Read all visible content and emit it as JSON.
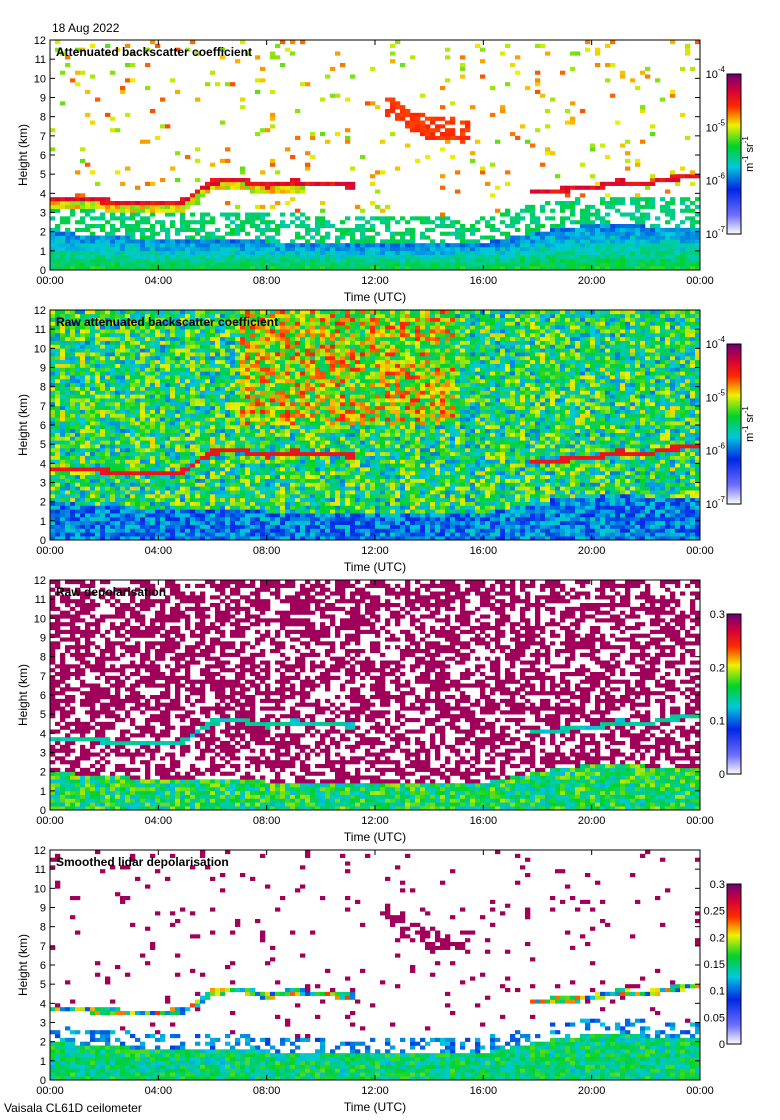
{
  "header": {
    "date": "18 Aug 2022"
  },
  "footer": {
    "instrument": "Vaisala CL61D ceilometer"
  },
  "chart_data": [
    {
      "type": "heatmap",
      "title": "Attenuated backscatter coefficient",
      "xlabel": "Time (UTC)",
      "ylabel": "Height (km)",
      "xlim": [
        "00:00",
        "24:00"
      ],
      "ylim": [
        0,
        12
      ],
      "x_ticks": [
        "00:00",
        "04:00",
        "08:00",
        "12:00",
        "16:00",
        "20:00",
        "00:00"
      ],
      "y_ticks": [
        "0",
        "1",
        "2",
        "3",
        "4",
        "5",
        "6",
        "7",
        "8",
        "9",
        "10",
        "11",
        "12"
      ],
      "colorbar": {
        "scale": "log",
        "range": [
          1e-07,
          0.0001
        ],
        "ticks": [
          "10",
          "10",
          "10",
          "10"
        ],
        "tick_exponents": [
          "-7",
          "-6",
          "-5",
          "-4"
        ],
        "unit": "m",
        "unit_exp1": "-1",
        "unit_mid": " sr",
        "unit_exp2": "-1",
        "colormap": "rainbow"
      },
      "features": {
        "cloud_base_low_km": [
          [
            0,
            3.7
          ],
          [
            1,
            3.7
          ],
          [
            2,
            3.6
          ],
          [
            3,
            3.5
          ],
          [
            4,
            3.5
          ],
          [
            5,
            3.6
          ],
          [
            6,
            4.6
          ],
          [
            7,
            4.7
          ],
          [
            8,
            4.4
          ],
          [
            9,
            4.6
          ],
          [
            10,
            4.5
          ],
          [
            11,
            4.4
          ],
          [
            18,
            4.1
          ],
          [
            19,
            4.2
          ],
          [
            20,
            4.3
          ],
          [
            21,
            4.6
          ],
          [
            22,
            4.5
          ],
          [
            23,
            4.8
          ],
          [
            24,
            4.9
          ]
        ],
        "high_cloud_km": [
          [
            12.5,
            8.5
          ],
          [
            13,
            8.1
          ],
          [
            14,
            7.4
          ],
          [
            15,
            7.3
          ]
        ],
        "boundary_layer_top_km": [
          [
            0,
            2
          ],
          [
            4,
            1.6
          ],
          [
            8,
            1.5
          ],
          [
            12,
            1.3
          ],
          [
            16,
            1.4
          ],
          [
            18,
            2.0
          ],
          [
            20,
            2.4
          ],
          [
            24,
            2.2
          ]
        ]
      }
    },
    {
      "type": "heatmap",
      "title": "Raw attenuated backscatter coefficient",
      "xlabel": "Time (UTC)",
      "ylabel": "Height (km)",
      "xlim": [
        "00:00",
        "24:00"
      ],
      "ylim": [
        0,
        12
      ],
      "x_ticks": [
        "00:00",
        "04:00",
        "08:00",
        "12:00",
        "16:00",
        "20:00",
        "00:00"
      ],
      "y_ticks": [
        "0",
        "1",
        "2",
        "3",
        "4",
        "5",
        "6",
        "7",
        "8",
        "9",
        "10",
        "11",
        "12"
      ],
      "colorbar": {
        "scale": "log",
        "range": [
          1e-07,
          0.0001
        ],
        "ticks": [
          "10",
          "10",
          "10",
          "10"
        ],
        "tick_exponents": [
          "-7",
          "-6",
          "-5",
          "-4"
        ],
        "unit": "m",
        "unit_exp1": "-1",
        "unit_mid": " sr",
        "unit_exp2": "-1",
        "colormap": "rainbow"
      }
    },
    {
      "type": "heatmap",
      "title": "Raw depolarisation",
      "xlabel": "Time (UTC)",
      "ylabel": "Height (km)",
      "xlim": [
        "00:00",
        "24:00"
      ],
      "ylim": [
        0,
        12
      ],
      "x_ticks": [
        "00:00",
        "04:00",
        "08:00",
        "12:00",
        "16:00",
        "20:00",
        "00:00"
      ],
      "y_ticks": [
        "0",
        "1",
        "2",
        "3",
        "4",
        "5",
        "6",
        "7",
        "8",
        "9",
        "10",
        "11",
        "12"
      ],
      "colorbar": {
        "scale": "linear",
        "range": [
          0,
          0.3
        ],
        "ticks": [
          "0",
          "0.1",
          "0.2",
          "0.3"
        ],
        "colormap": "rainbow"
      }
    },
    {
      "type": "heatmap",
      "title": "Smoothed lidar depolarisation",
      "xlabel": "Time (UTC)",
      "ylabel": "Height (km)",
      "xlim": [
        "00:00",
        "24:00"
      ],
      "ylim": [
        0,
        12
      ],
      "x_ticks": [
        "00:00",
        "04:00",
        "08:00",
        "12:00",
        "16:00",
        "20:00",
        "00:00"
      ],
      "y_ticks": [
        "0",
        "1",
        "2",
        "3",
        "4",
        "5",
        "6",
        "7",
        "8",
        "9",
        "10",
        "11",
        "12"
      ],
      "colorbar": {
        "scale": "linear",
        "range": [
          0,
          0.3
        ],
        "ticks": [
          "0",
          "0.05",
          "0.1",
          "0.15",
          "0.2",
          "0.25",
          "0.3"
        ],
        "colormap": "rainbow"
      }
    }
  ]
}
